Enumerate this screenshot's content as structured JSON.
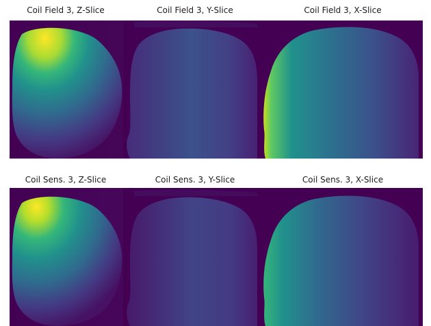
{
  "figure": {
    "rows": [
      {
        "titles": {
          "z": "Coil Field 3, Z-Slice",
          "y": "Coil Field 3, Y-Slice",
          "x": "Coil Field 3, X-Slice"
        }
      },
      {
        "titles": {
          "z": "Coil Sens. 3, Z-Slice",
          "y": "Coil Sens. 3, Y-Slice",
          "x": "Coil Sens. 3, X-Slice"
        }
      }
    ],
    "colormap": "viridis",
    "colors": {
      "background": "#440154",
      "dark_purple": "#46085c",
      "indigo": "#3b518b",
      "teal": "#21918c",
      "green": "#5ec962",
      "yellow": "#fde725"
    }
  }
}
